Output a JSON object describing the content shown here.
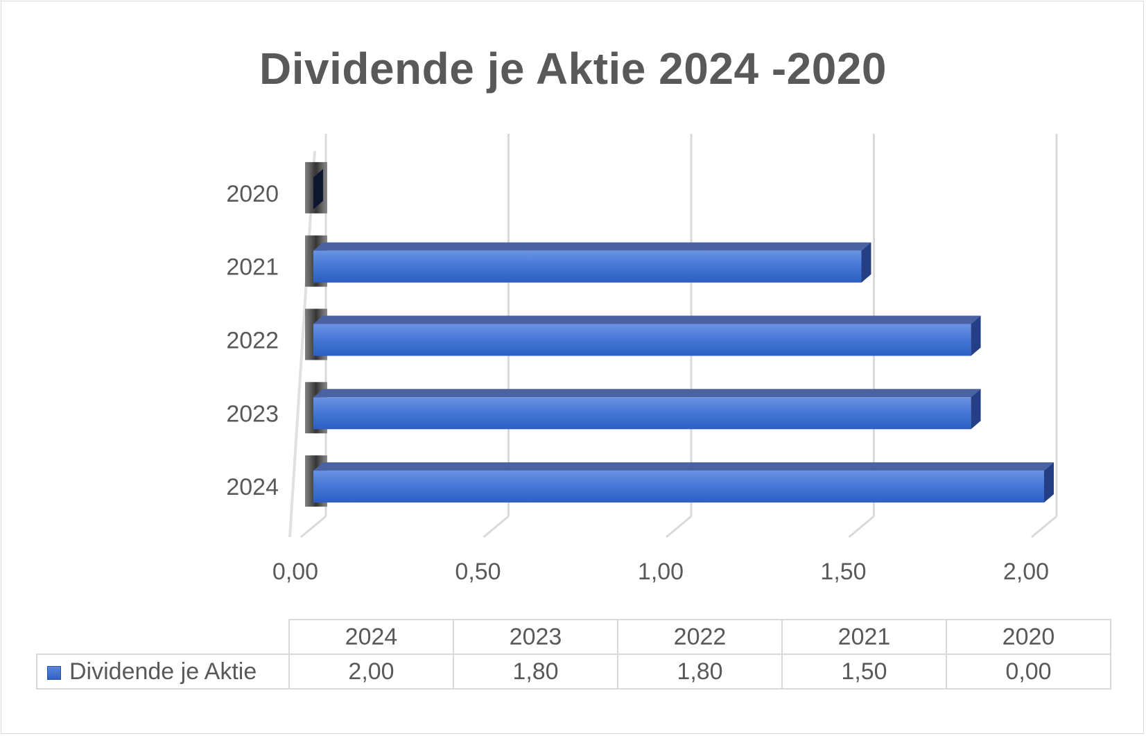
{
  "chart_data": {
    "type": "bar",
    "orientation": "horizontal",
    "style": "3d",
    "title": "Dividende je Aktie 2024 -2020",
    "categories": [
      "2024",
      "2023",
      "2022",
      "2021",
      "2020"
    ],
    "series": [
      {
        "name": "Dividende je Aktie",
        "values": [
          2.0,
          1.8,
          1.8,
          1.5,
          0.0
        ],
        "color": "#3f6fd1"
      }
    ],
    "xlim": [
      0,
      2
    ],
    "x_ticks": [
      "0,00",
      "0,50",
      "1,00",
      "1,50",
      "2,00"
    ],
    "grid": true,
    "data_table": {
      "headers": [
        "2024",
        "2023",
        "2022",
        "2021",
        "2020"
      ],
      "values": [
        "2,00",
        "1,80",
        "1,80",
        "1,50",
        "0,00"
      ]
    }
  }
}
